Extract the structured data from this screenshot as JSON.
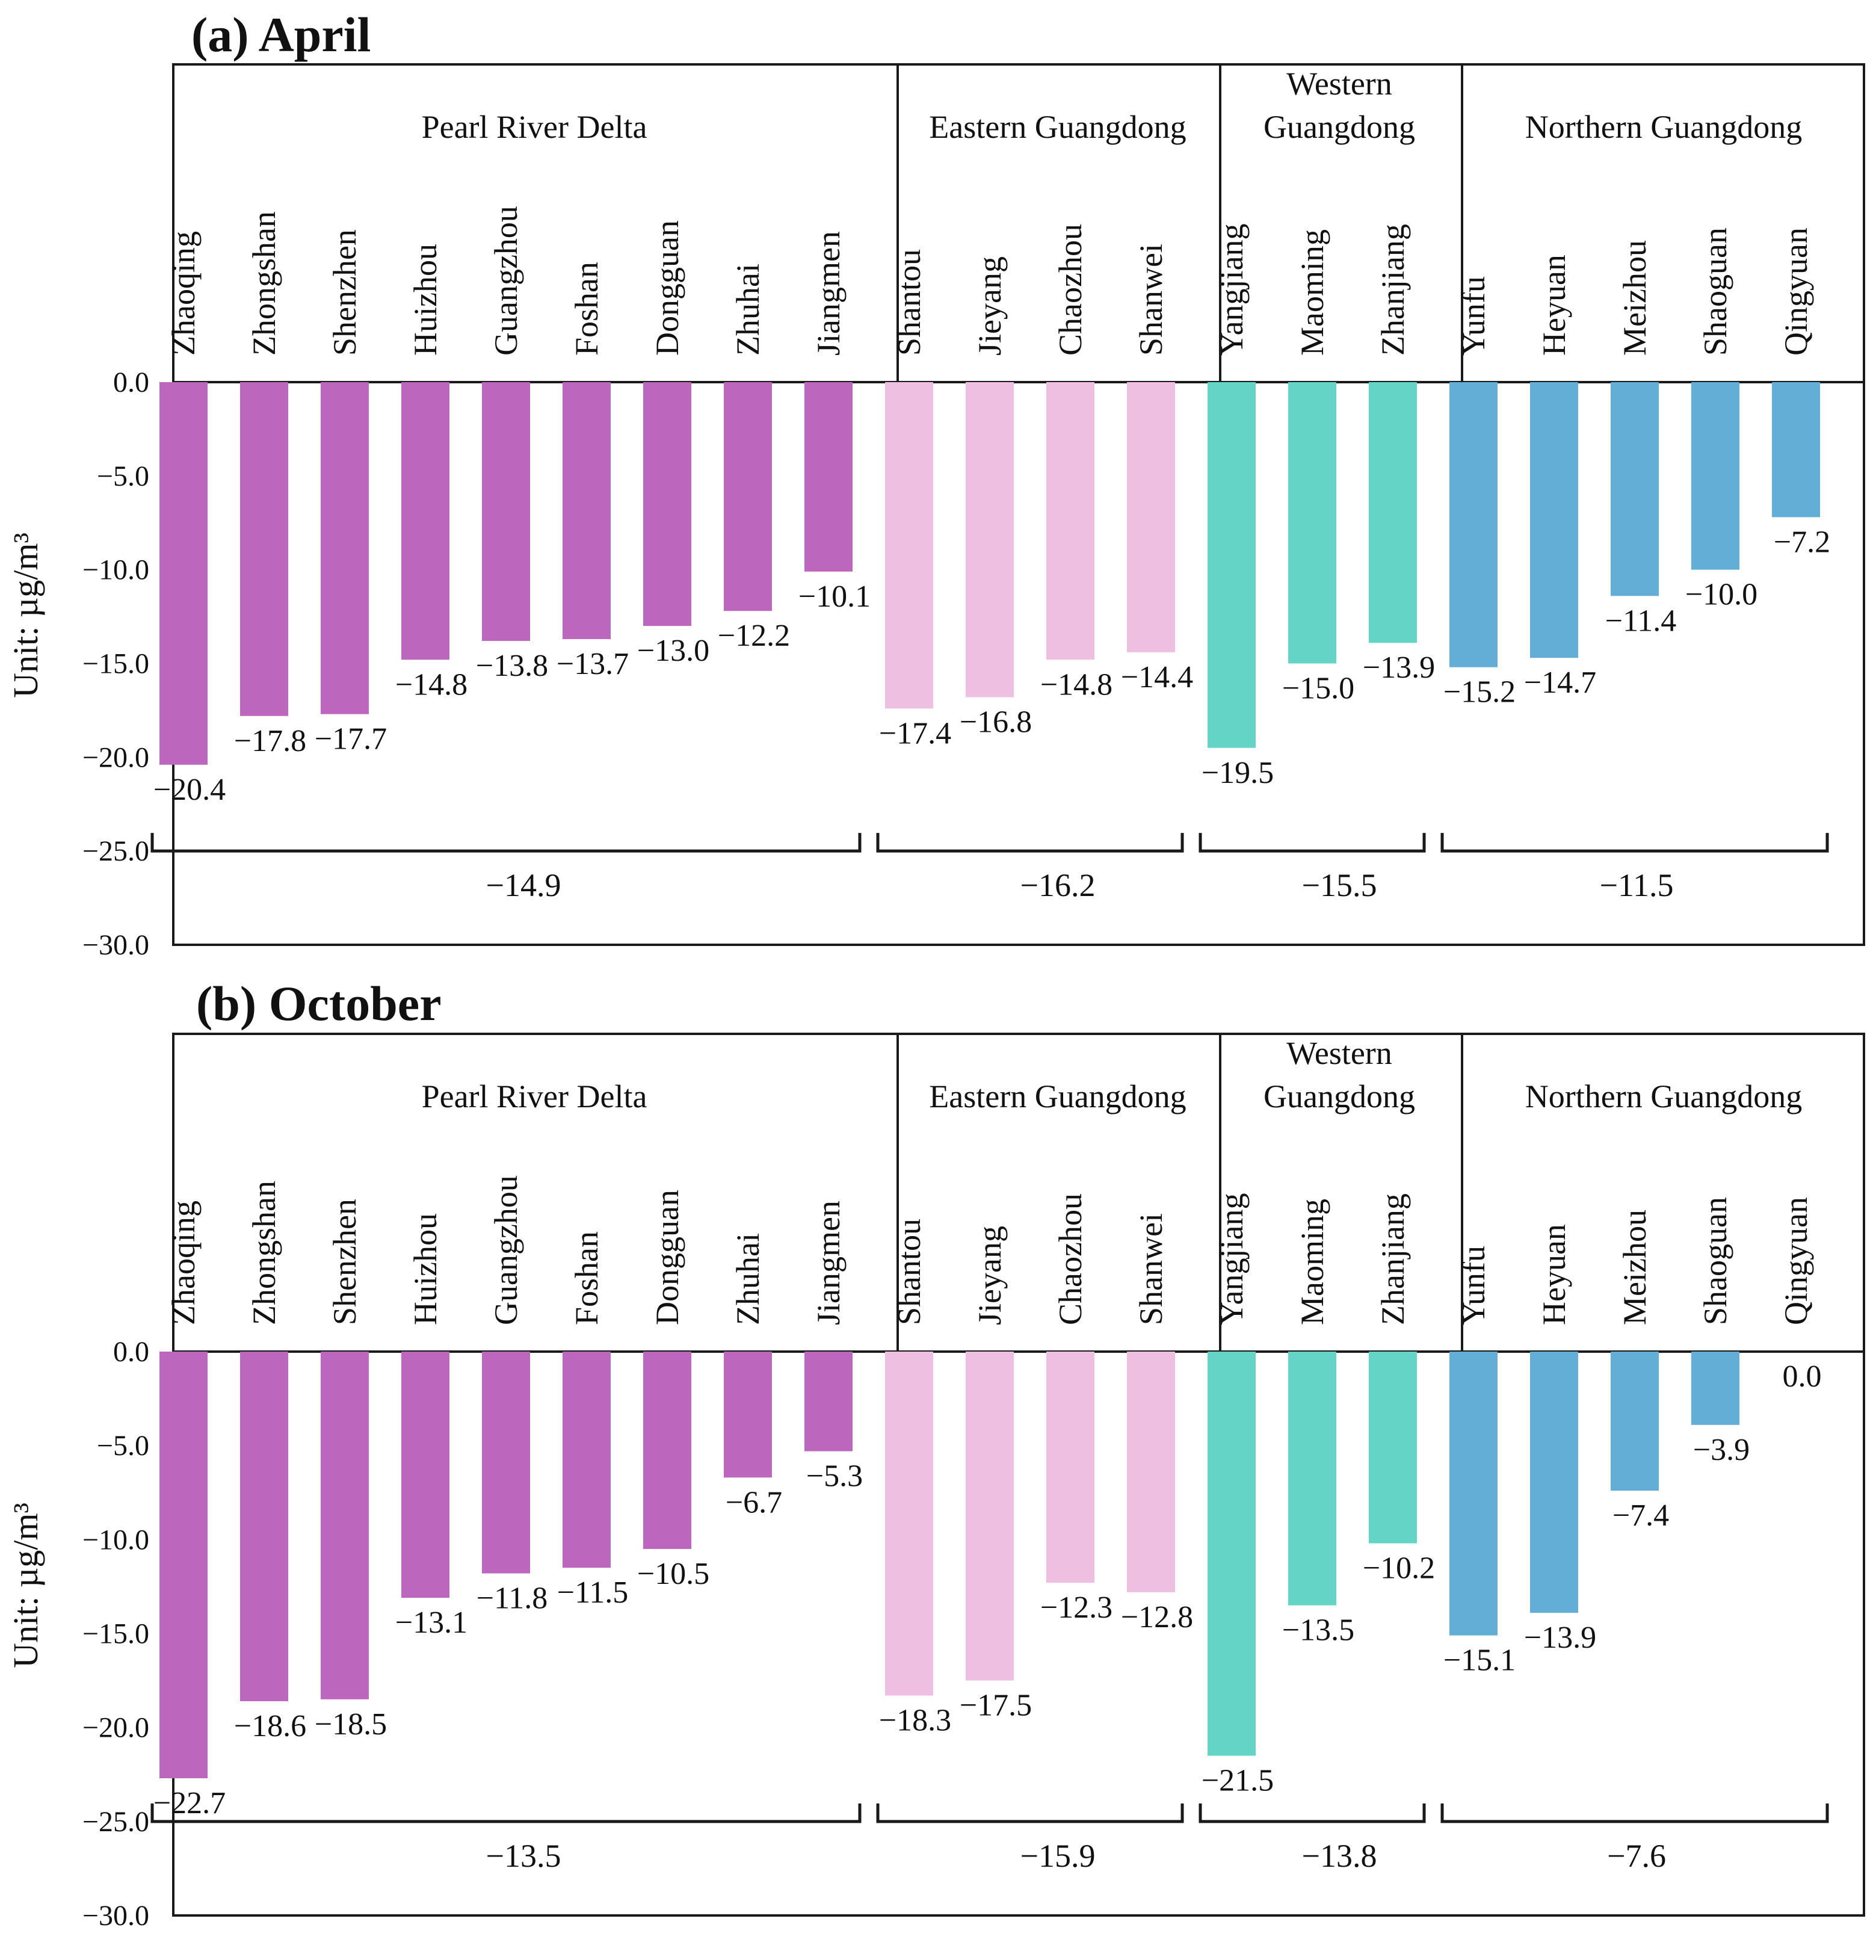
{
  "chart_data": [
    {
      "type": "bar",
      "title": "(a) April",
      "ylabel": "Unit: µg/m³",
      "ylim": [
        -30,
        0
      ],
      "yticks": [
        "0.0",
        "-5.0",
        "-10.0",
        "-15.0",
        "-20.0",
        "-25.0",
        "-30.0"
      ],
      "regions": [
        {
          "name": "Pearl River Delta",
          "color": "#BD66BD",
          "average": -14.9,
          "average_label": "-14.9",
          "cities": [
            "Zhaoqing",
            "Zhongshan",
            "Shenzhen",
            "Huizhou",
            "Guangzhou",
            "Foshan",
            "Dongguan",
            "Zhuhai",
            "Jiangmen"
          ],
          "values": [
            -20.4,
            -17.8,
            -17.7,
            -14.8,
            -13.8,
            -13.7,
            -13.0,
            -12.2,
            -10.1
          ],
          "labels": [
            "-20.4",
            "-17.8",
            "-17.7",
            "-14.8",
            "-13.8",
            "-13.7",
            "-13.0",
            "-12.2",
            "-10.1"
          ]
        },
        {
          "name": "Eastern Guangdong",
          "color": "#EEBFE0",
          "average": -16.2,
          "average_label": "-16.2",
          "cities": [
            "Shantou",
            "Jieyang",
            "Chaozhou",
            "Shanwei"
          ],
          "values": [
            -17.4,
            -16.8,
            -14.8,
            -14.4
          ],
          "labels": [
            "-17.4",
            "-16.8",
            "-14.8",
            "-14.4"
          ]
        },
        {
          "name": "Western Guangdong",
          "color": "#64D4C6",
          "average": -15.5,
          "average_label": "-15.5",
          "cities": [
            "Yangjiang",
            "Maoming",
            "Zhanjiang"
          ],
          "values": [
            -19.5,
            -15.0,
            -13.9
          ],
          "labels": [
            "-19.5",
            "-15.0",
            "-13.9"
          ]
        },
        {
          "name": "Northern Guangdong",
          "color": "#62AED6",
          "average": -11.5,
          "average_label": "-11.5",
          "cities": [
            "Yunfu",
            "Heyuan",
            "Meizhou",
            "Shaoguan",
            "Qingyuan"
          ],
          "values": [
            -15.2,
            -14.7,
            -11.4,
            -10.0,
            -7.2
          ],
          "labels": [
            "-15.2",
            "-14.7",
            "-11.4",
            "-10.0",
            "-7.2"
          ]
        }
      ]
    },
    {
      "type": "bar",
      "title": "(b) October",
      "ylabel": "Unit: µg/m³",
      "ylim": [
        -30,
        0
      ],
      "yticks": [
        "0.0",
        "-5.0",
        "-10.0",
        "-15.0",
        "-20.0",
        "-25.0",
        "-30.0"
      ],
      "regions": [
        {
          "name": "Pearl River Delta",
          "color": "#BD66BD",
          "average": -13.5,
          "average_label": "-13.5",
          "cities": [
            "Zhaoqing",
            "Zhongshan",
            "Shenzhen",
            "Huizhou",
            "Guangzhou",
            "Foshan",
            "Dongguan",
            "Zhuhai",
            "Jiangmen"
          ],
          "values": [
            -22.7,
            -18.6,
            -18.5,
            -13.1,
            -11.8,
            -11.5,
            -10.5,
            -6.7,
            -5.3
          ],
          "labels": [
            "-22.7",
            "-18.6",
            "-18.5",
            "-13.1",
            "-11.8",
            "-11.5",
            "-10.5",
            "-6.7",
            "-5.3"
          ]
        },
        {
          "name": "Eastern Guangdong",
          "color": "#EEBFE0",
          "average": -15.9,
          "average_label": "-15.9",
          "cities": [
            "Shantou",
            "Jieyang",
            "Chaozhou",
            "Shanwei"
          ],
          "values": [
            -18.3,
            -17.5,
            -12.3,
            -12.8
          ],
          "labels": [
            "-18.3",
            "-17.5",
            "-12.3",
            "-12.8"
          ]
        },
        {
          "name": "Western Guangdong",
          "color": "#64D4C6",
          "average": -13.8,
          "average_label": "-13.8",
          "cities": [
            "Yangjiang",
            "Maoming",
            "Zhanjiang"
          ],
          "values": [
            -21.5,
            -13.5,
            -10.2
          ],
          "labels": [
            "-21.5",
            "-13.5",
            "-10.2"
          ]
        },
        {
          "name": "Northern Guangdong",
          "color": "#62AED6",
          "average": -7.6,
          "average_label": "-7.6",
          "cities": [
            "Yunfu",
            "Heyuan",
            "Meizhou",
            "Shaoguan",
            "Qingyuan"
          ],
          "values": [
            -15.1,
            -13.9,
            -7.4,
            -3.9,
            0.0
          ],
          "labels": [
            "-15.1",
            "-13.9",
            "-7.4",
            "-3.9",
            "0.0"
          ]
        }
      ]
    }
  ]
}
